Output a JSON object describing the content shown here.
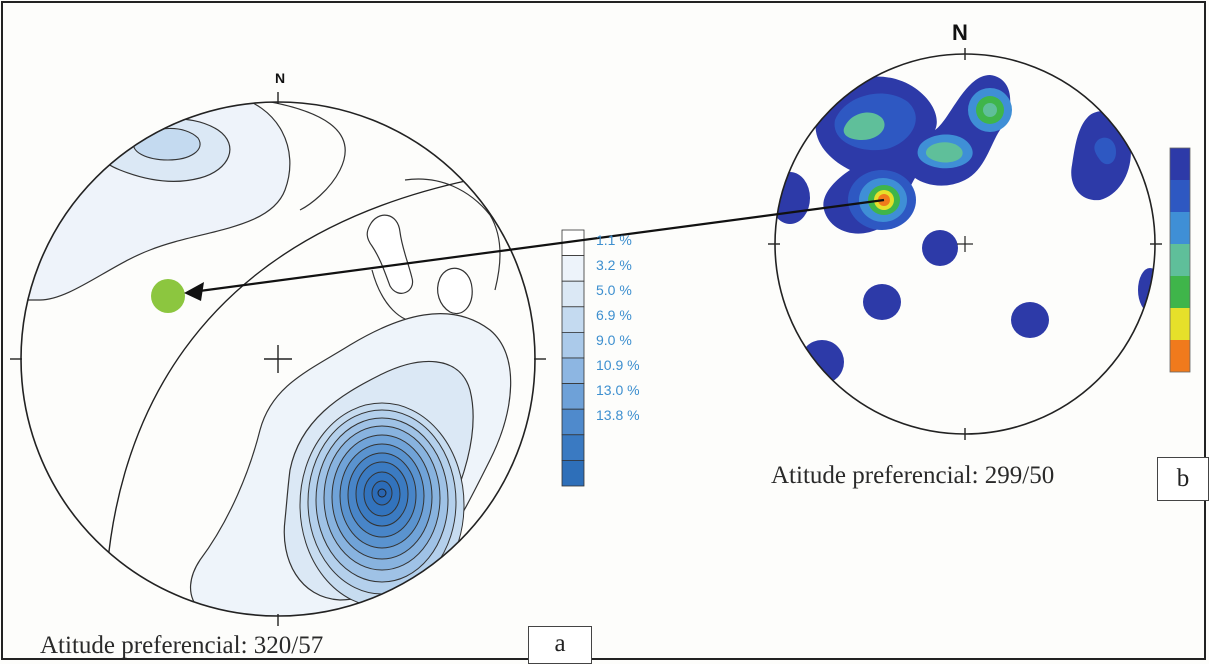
{
  "panel_a": {
    "north_label": "N",
    "caption": "Atitude preferencial: 320/57",
    "panel_label": "a",
    "legend": {
      "labels": [
        "1.1 %",
        "3.2 %",
        "5.0 %",
        "6.9 %",
        "9.0 %",
        "10.9 %",
        "13.0 %",
        "13.8 %"
      ],
      "colors": [
        "#ffffff",
        "#edf3fa",
        "#dbe8f5",
        "#c4daf0",
        "#abcaea",
        "#8db6e2",
        "#6ea1d8",
        "#4f8acc",
        "#3a7ac2",
        "#2e6fb9"
      ]
    },
    "point_color": "#8cc63f"
  },
  "panel_b": {
    "north_label": "N",
    "caption": "Atitude preferencial: 299/50",
    "panel_label": "b",
    "legend": {
      "colors": [
        "#2d3aa8",
        "#2e58c2",
        "#3f8fd6",
        "#5fbf9a",
        "#3fb54a",
        "#e6e02a",
        "#f07a1c"
      ]
    }
  }
}
